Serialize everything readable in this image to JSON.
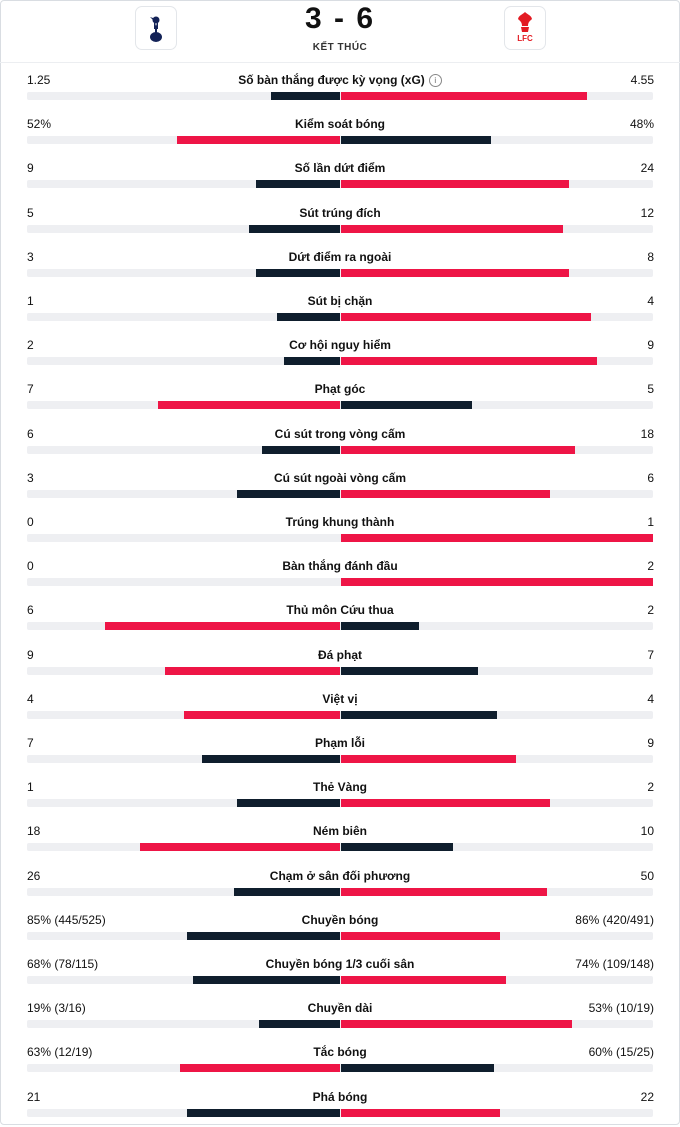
{
  "match": {
    "score": "3 - 6",
    "status": "KẾT THÚC",
    "home_crest": "tottenham-crest-icon",
    "away_crest": "liverpool-crest-icon",
    "away_crest_text": "LFC"
  },
  "colors": {
    "home": "#0f1e2d",
    "away": "#ee1546",
    "track": "#eeeff2"
  },
  "stats": [
    {
      "label": "Số bàn thắng được kỳ vọng (xG)",
      "home": "1.25",
      "away": "4.55",
      "home_share": 0.22,
      "away_share": 0.79,
      "info": true
    },
    {
      "label": "Kiểm soát bóng",
      "home": "52%",
      "away": "48%",
      "home_share": 0.52,
      "away_share": 0.48
    },
    {
      "label": "Số lần dứt điểm",
      "home": "9",
      "away": "24",
      "home_share": 0.27,
      "away_share": 0.73
    },
    {
      "label": "Sút trúng đích",
      "home": "5",
      "away": "12",
      "home_share": 0.29,
      "away_share": 0.71
    },
    {
      "label": "Dứt điểm ra ngoài",
      "home": "3",
      "away": "8",
      "home_share": 0.27,
      "away_share": 0.73
    },
    {
      "label": "Sút bị chặn",
      "home": "1",
      "away": "4",
      "home_share": 0.2,
      "away_share": 0.8
    },
    {
      "label": "Cơ hội nguy hiểm",
      "home": "2",
      "away": "9",
      "home_share": 0.18,
      "away_share": 0.82
    },
    {
      "label": "Phạt góc",
      "home": "7",
      "away": "5",
      "home_share": 0.58,
      "away_share": 0.42
    },
    {
      "label": "Cú sút trong vòng cấm",
      "home": "6",
      "away": "18",
      "home_share": 0.25,
      "away_share": 0.75
    },
    {
      "label": "Cú sút ngoài vòng cấm",
      "home": "3",
      "away": "6",
      "home_share": 0.33,
      "away_share": 0.67
    },
    {
      "label": "Trúng khung thành",
      "home": "0",
      "away": "1",
      "home_share": 0,
      "away_share": 1
    },
    {
      "label": "Bàn thắng đánh đầu",
      "home": "0",
      "away": "2",
      "home_share": 0,
      "away_share": 1
    },
    {
      "label": "Thủ môn Cứu thua",
      "home": "6",
      "away": "2",
      "home_share": 0.75,
      "away_share": 0.25
    },
    {
      "label": "Đá phạt",
      "home": "9",
      "away": "7",
      "home_share": 0.56,
      "away_share": 0.44
    },
    {
      "label": "Việt vị",
      "home": "4",
      "away": "4",
      "home_share": 0.5,
      "away_share": 0.5
    },
    {
      "label": "Phạm lỗi",
      "home": "7",
      "away": "9",
      "home_share": 0.44,
      "away_share": 0.56
    },
    {
      "label": "Thẻ Vàng",
      "home": "1",
      "away": "2",
      "home_share": 0.33,
      "away_share": 0.67
    },
    {
      "label": "Ném biên",
      "home": "18",
      "away": "10",
      "home_share": 0.64,
      "away_share": 0.36
    },
    {
      "label": "Chạm ở sân đối phương",
      "home": "26",
      "away": "50",
      "home_share": 0.34,
      "away_share": 0.66
    },
    {
      "label": "Chuyền bóng",
      "home": "85% (445/525)",
      "away": "86% (420/491)",
      "home_share": 0.49,
      "away_share": 0.51
    },
    {
      "label": "Chuyền bóng 1/3 cuối sân",
      "home": "68% (78/115)",
      "away": "74% (109/148)",
      "home_share": 0.47,
      "away_share": 0.53
    },
    {
      "label": "Chuyền dài",
      "home": "19% (3/16)",
      "away": "53% (10/19)",
      "home_share": 0.26,
      "away_share": 0.74
    },
    {
      "label": "Tắc bóng",
      "home": "63% (12/19)",
      "away": "60% (15/25)",
      "home_share": 0.51,
      "away_share": 0.49
    },
    {
      "label": "Phá bóng",
      "home": "21",
      "away": "22",
      "home_share": 0.49,
      "away_share": 0.51
    }
  ]
}
